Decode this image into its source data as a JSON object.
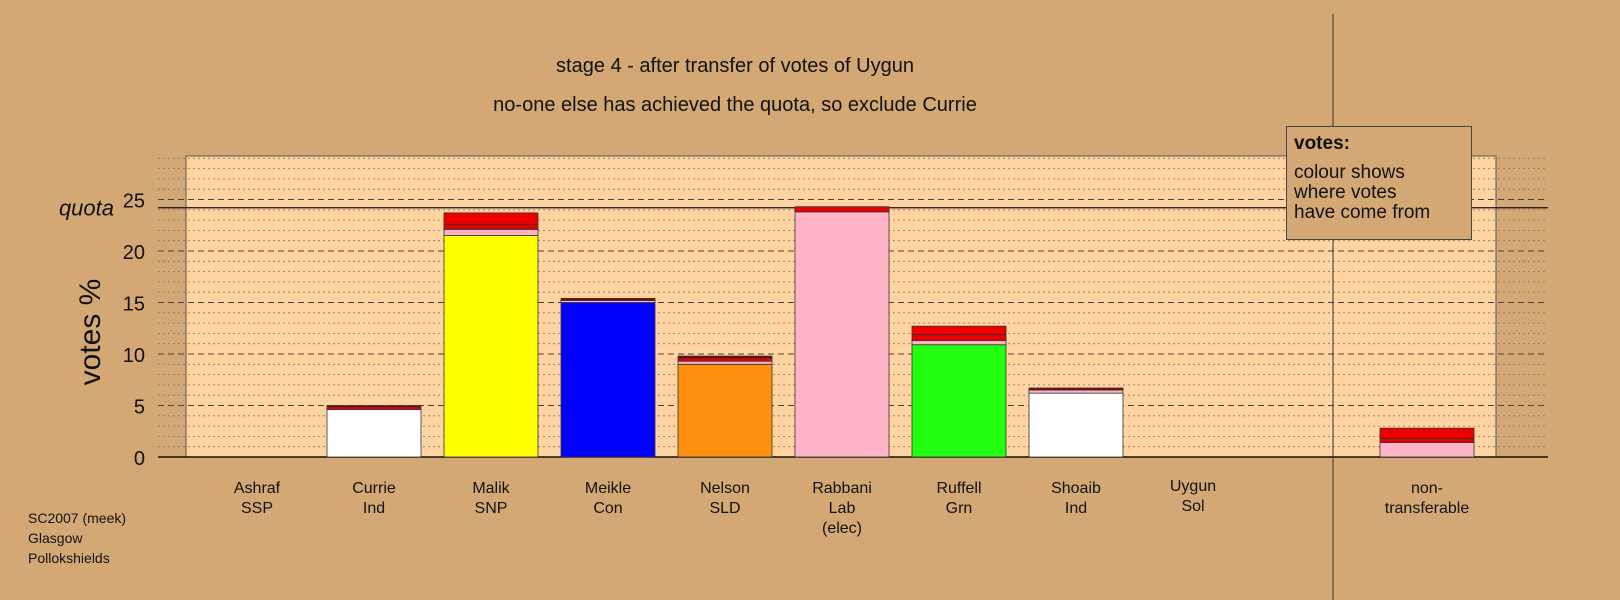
{
  "chart_data": {
    "type": "bar",
    "stacked": true,
    "title": "stage 4 - after transfer of votes of Uygun",
    "subtitle": "no-one else has achieved the quota, so exclude Currie",
    "ylabel": "votes %",
    "ylim": [
      0,
      29
    ],
    "yticks": [
      0,
      5,
      10,
      15,
      20,
      25
    ],
    "grid": true,
    "quota": {
      "label": "quota",
      "value": 24.2
    },
    "categories": [
      {
        "name": "Ashraf",
        "party": "SSP",
        "extra": ""
      },
      {
        "name": "Currie",
        "party": "Ind",
        "extra": ""
      },
      {
        "name": "Malik",
        "party": "SNP",
        "extra": ""
      },
      {
        "name": "Meikle",
        "party": "Con",
        "extra": ""
      },
      {
        "name": "Nelson",
        "party": "SLD",
        "extra": ""
      },
      {
        "name": "Rabbani",
        "party": "Lab",
        "extra": "(elec)"
      },
      {
        "name": "Ruffell",
        "party": "Grn",
        "extra": ""
      },
      {
        "name": "Shoaib",
        "party": "Ind",
        "extra": ""
      },
      {
        "name": "Uygun",
        "party": "Sol",
        "extra": ""
      },
      {
        "name": "non-",
        "party": "transferable",
        "extra": ""
      }
    ],
    "segments": [
      [],
      [
        {
          "value": 4.6,
          "color": "#ffffff"
        },
        {
          "value": 0.25,
          "color": "#e80000"
        },
        {
          "value": 0.15,
          "color": "#8b0000"
        }
      ],
      [
        {
          "value": 21.5,
          "color": "#ffff00"
        },
        {
          "value": 0.6,
          "color": "#ffb3c6"
        },
        {
          "value": 0.5,
          "color": "#e80000"
        },
        {
          "value": 1.1,
          "color": "#ee0000"
        }
      ],
      [
        {
          "value": 15.0,
          "color": "#0000ff"
        },
        {
          "value": 0.2,
          "color": "#ffb3c6"
        },
        {
          "value": 0.2,
          "color": "#8b0000"
        }
      ],
      [
        {
          "value": 9.0,
          "color": "#ff9010"
        },
        {
          "value": 0.3,
          "color": "#ffb3c6"
        },
        {
          "value": 0.3,
          "color": "#e80000"
        },
        {
          "value": 0.2,
          "color": "#8b0000"
        }
      ],
      [
        {
          "value": 23.8,
          "color": "#ffb3c6"
        },
        {
          "value": 0.5,
          "color": "#e80000"
        }
      ],
      [
        {
          "value": 10.9,
          "color": "#22ff11"
        },
        {
          "value": 0.4,
          "color": "#ffb3c6"
        },
        {
          "value": 0.6,
          "color": "#e80000"
        },
        {
          "value": 0.8,
          "color": "#ee0000"
        }
      ],
      [
        {
          "value": 6.2,
          "color": "#ffffff"
        },
        {
          "value": 0.3,
          "color": "#ffb3c6"
        },
        {
          "value": 0.2,
          "color": "#8b0000"
        }
      ],
      [],
      [
        {
          "value": 1.4,
          "color": "#ffb3c6"
        },
        {
          "value": 0.4,
          "color": "#e80000"
        },
        {
          "value": 1.0,
          "color": "#ee0000"
        }
      ]
    ],
    "colors": {
      "background": "#d4a874",
      "plot_area": "#ffd4a0"
    }
  },
  "legend": {
    "title": "votes:",
    "lines": [
      "colour shows",
      "where votes",
      "have come from"
    ]
  },
  "footer": {
    "lines": [
      "SC2007 (meek)",
      "Glasgow",
      "Pollokshields"
    ]
  }
}
